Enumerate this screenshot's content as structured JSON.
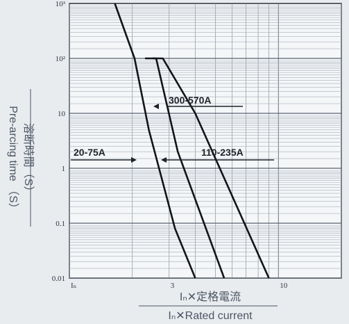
{
  "chart_data": {
    "type": "line",
    "xscale": "log",
    "yscale": "log",
    "xlim": [
      1,
      20
    ],
    "ylim": [
      0.01,
      1000
    ],
    "grid": true,
    "xticks": [
      {
        "value": 1,
        "label": "Iₙ"
      },
      {
        "value": 3,
        "label": "3"
      },
      {
        "value": 10,
        "label": "10"
      }
    ],
    "yticks": [
      {
        "value": 1000,
        "label": "10³"
      },
      {
        "value": 100,
        "label": "10²"
      },
      {
        "value": 10,
        "label": "10"
      },
      {
        "value": 1,
        "label": "1"
      },
      {
        "value": 0.1,
        "label": "0.1"
      },
      {
        "value": 0.01,
        "label": "0.01"
      }
    ],
    "ylabel_jp": "溶断時間（S）",
    "ylabel_en": "Pre-arcing time （S）",
    "xlabel_jp": "Iₙ✕定格電流",
    "xlabel_en": "Iₙ✕Rated current",
    "series": [
      {
        "name": "20-75A",
        "x": [
          1.65,
          2.05,
          2.4,
          3.2,
          4.0
        ],
        "y": [
          1000,
          100,
          5,
          0.08,
          0.01
        ]
      },
      {
        "name": "110-235A",
        "x": [
          2.3,
          2.6,
          3.3,
          5.5
        ],
        "y": [
          100,
          100,
          2,
          0.01
        ]
      },
      {
        "name": "300-570A",
        "x": [
          2.5,
          2.8,
          4.0,
          9.0
        ],
        "y": [
          100,
          100,
          10,
          0.01
        ]
      }
    ],
    "annotations": [
      {
        "series": "300-570A",
        "text": "300-570A",
        "at_x": 3.3,
        "at_y": 30
      },
      {
        "series": "20-75A",
        "text": "20-75A",
        "at_x": 2.6,
        "at_y": 1.5
      },
      {
        "series": "110-235A",
        "text": "110-235A",
        "at_x": 3.5,
        "at_y": 1.5
      }
    ]
  }
}
